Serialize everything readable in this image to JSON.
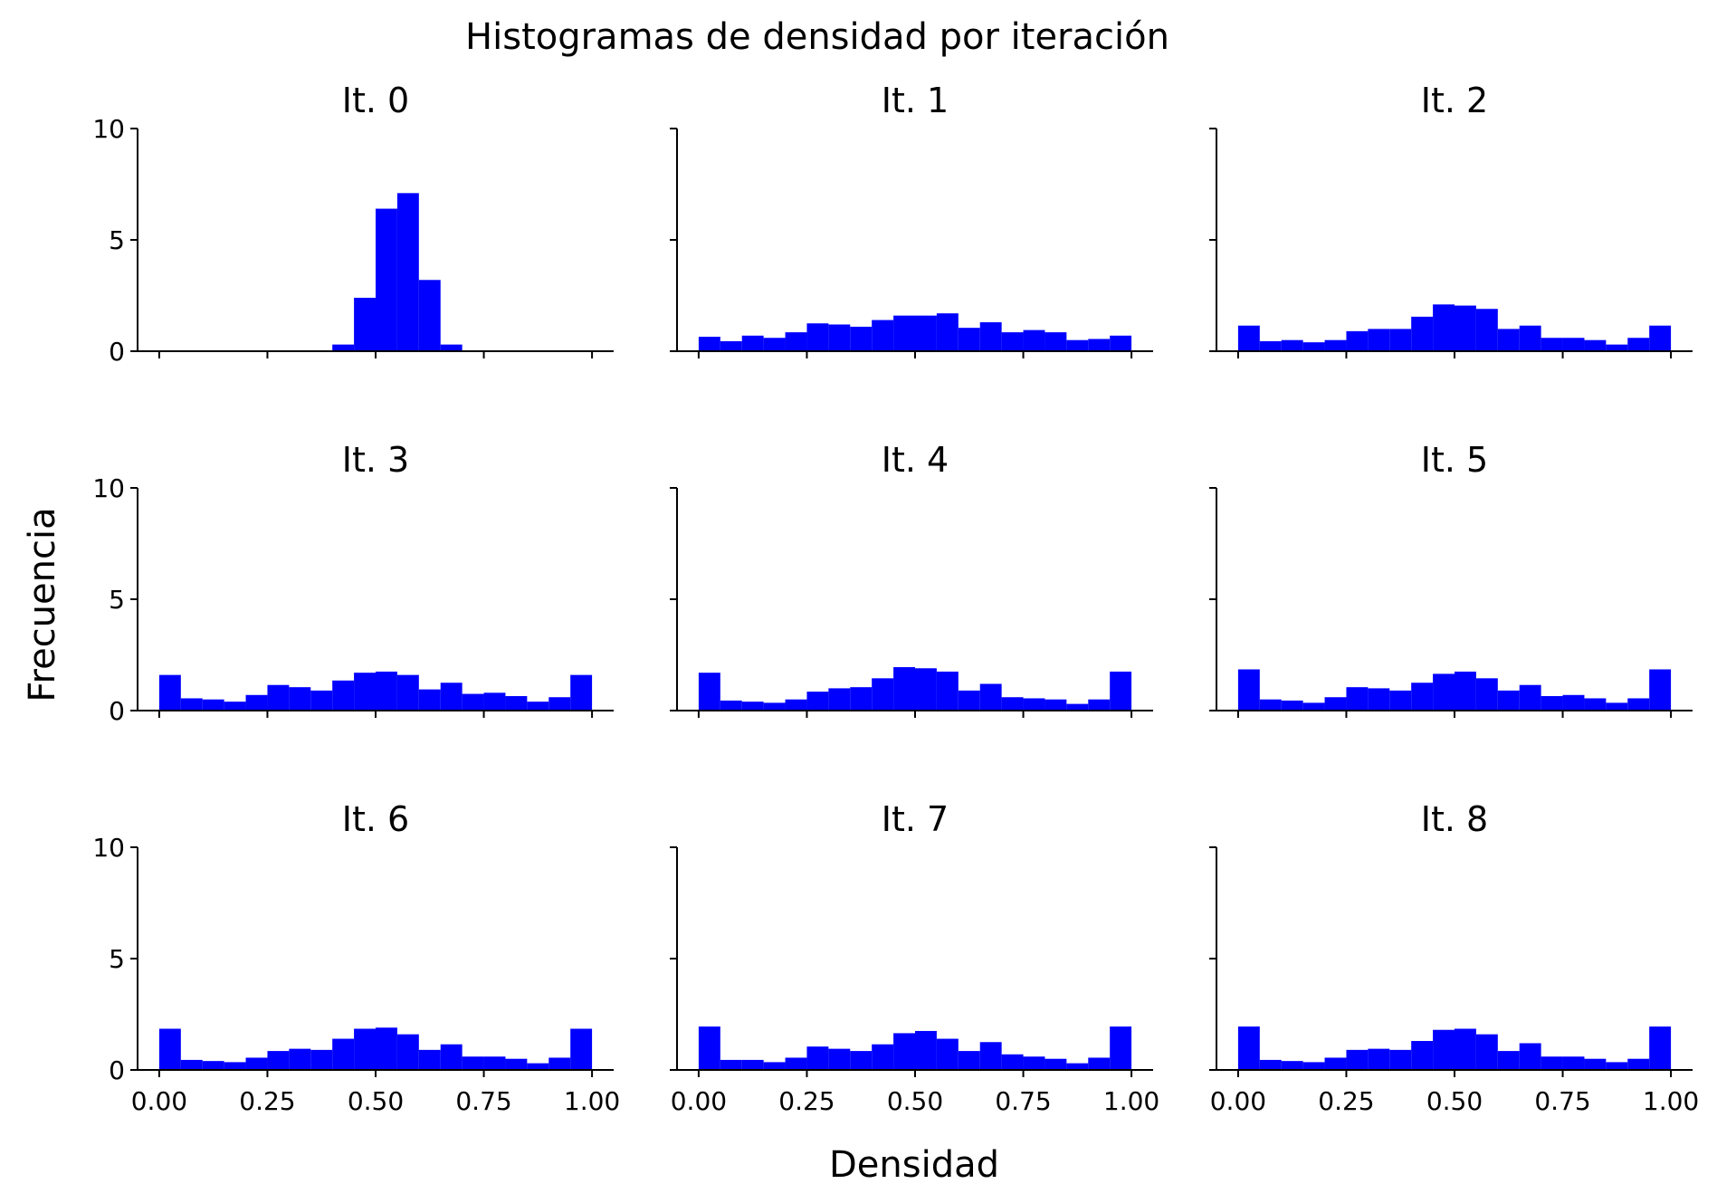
{
  "figure": {
    "title": "Histogramas de densidad por iteración",
    "xlabel": "Densidad",
    "ylabel": "Frecuencia"
  },
  "chart_data": {
    "type": "bar",
    "layout": "3x3 grid of histograms, shared x and y axes",
    "bar_color": "#0000ff",
    "bins": {
      "start": 0.0,
      "end": 1.0,
      "count": 20,
      "width": 0.05
    },
    "xlim": [
      -0.05,
      1.05
    ],
    "ylim": [
      0,
      10
    ],
    "xticks": [
      0.0,
      0.25,
      0.5,
      0.75,
      1.0
    ],
    "xtick_labels": [
      "0.00",
      "0.25",
      "0.50",
      "0.75",
      "1.00"
    ],
    "yticks": [
      0,
      5,
      10
    ],
    "ytick_labels": [
      "0",
      "5",
      "10"
    ],
    "grid": false,
    "legend": "none",
    "panels": [
      {
        "title": "It. 0",
        "values": [
          0,
          0,
          0,
          0,
          0,
          0,
          0,
          0,
          0.3,
          2.4,
          6.4,
          7.1,
          3.2,
          0.3,
          0,
          0,
          0,
          0,
          0,
          0
        ]
      },
      {
        "title": "It. 1",
        "values": [
          0.65,
          0.45,
          0.7,
          0.6,
          0.85,
          1.25,
          1.2,
          1.1,
          1.4,
          1.6,
          1.6,
          1.7,
          1.05,
          1.3,
          0.85,
          0.95,
          0.85,
          0.5,
          0.55,
          0.7
        ]
      },
      {
        "title": "It. 2",
        "values": [
          1.15,
          0.45,
          0.5,
          0.4,
          0.5,
          0.9,
          1.0,
          1.0,
          1.55,
          2.1,
          2.05,
          1.9,
          1.0,
          1.15,
          0.6,
          0.6,
          0.5,
          0.3,
          0.6,
          1.15
        ]
      },
      {
        "title": "It. 3",
        "values": [
          1.6,
          0.55,
          0.5,
          0.4,
          0.7,
          1.15,
          1.05,
          0.9,
          1.35,
          1.7,
          1.75,
          1.6,
          0.95,
          1.25,
          0.75,
          0.8,
          0.65,
          0.4,
          0.6,
          1.6
        ]
      },
      {
        "title": "It. 4",
        "values": [
          1.7,
          0.45,
          0.4,
          0.35,
          0.5,
          0.85,
          1.0,
          1.05,
          1.45,
          1.95,
          1.9,
          1.75,
          0.9,
          1.2,
          0.6,
          0.55,
          0.5,
          0.3,
          0.5,
          1.75
        ]
      },
      {
        "title": "It. 5",
        "values": [
          1.85,
          0.5,
          0.45,
          0.35,
          0.6,
          1.05,
          1.0,
          0.9,
          1.25,
          1.65,
          1.75,
          1.45,
          0.9,
          1.15,
          0.65,
          0.7,
          0.55,
          0.35,
          0.55,
          1.85
        ]
      },
      {
        "title": "It. 6",
        "values": [
          1.85,
          0.45,
          0.4,
          0.35,
          0.55,
          0.85,
          0.95,
          0.9,
          1.4,
          1.85,
          1.9,
          1.6,
          0.9,
          1.15,
          0.6,
          0.6,
          0.5,
          0.3,
          0.55,
          1.85
        ]
      },
      {
        "title": "It. 7",
        "values": [
          1.95,
          0.45,
          0.45,
          0.35,
          0.55,
          1.05,
          0.95,
          0.85,
          1.15,
          1.65,
          1.75,
          1.4,
          0.85,
          1.25,
          0.7,
          0.6,
          0.5,
          0.3,
          0.55,
          1.95
        ]
      },
      {
        "title": "It. 8",
        "values": [
          1.95,
          0.45,
          0.4,
          0.35,
          0.55,
          0.9,
          0.95,
          0.9,
          1.3,
          1.8,
          1.85,
          1.6,
          0.85,
          1.2,
          0.6,
          0.6,
          0.5,
          0.35,
          0.5,
          1.95
        ]
      }
    ]
  }
}
